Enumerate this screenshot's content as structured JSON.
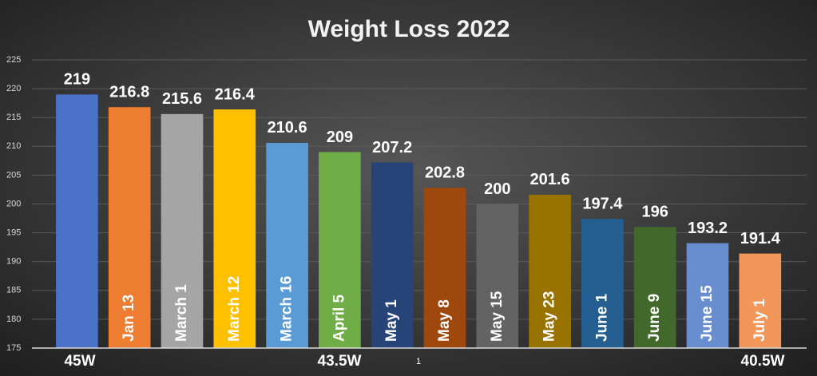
{
  "chart_data": {
    "type": "bar",
    "title": "Weight Loss 2022",
    "categories": [
      null,
      "Jan 13",
      "March 1",
      "March 12",
      "March 16",
      "April 5",
      "May 1",
      "May 8",
      "May 15",
      "May 23",
      "June 1",
      "June 9",
      "June 15",
      "July 1"
    ],
    "values": [
      219,
      216.8,
      215.6,
      216.4,
      210.6,
      209,
      207.2,
      202.8,
      200,
      201.6,
      197.4,
      196,
      193.2,
      191.4
    ],
    "colors": [
      "#4a72c8",
      "#ed7d31",
      "#a5a5a5",
      "#ffc000",
      "#5b9bd5",
      "#70ad47",
      "#264478",
      "#9e480e",
      "#636363",
      "#997300",
      "#255e91",
      "#43682b",
      "#698ed0",
      "#f1975a"
    ],
    "ylim": [
      175,
      225
    ],
    "yticks": [
      175,
      180,
      185,
      190,
      195,
      200,
      205,
      210,
      215,
      220,
      225
    ],
    "grid": true,
    "annotations": [
      "45W",
      "43.5W",
      "1",
      "40.5W"
    ]
  }
}
